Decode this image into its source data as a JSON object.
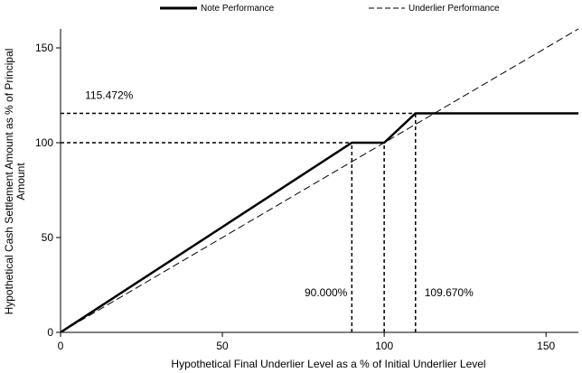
{
  "chart_data": {
    "type": "line",
    "title": "",
    "xlabel": "Hypothetical Final Underlier Level as a % of Initial Underlier Level",
    "ylabel_lines": [
      "Hypothetical Cash Settlement Amount as % of Principal",
      "Amount"
    ],
    "xlim": [
      0,
      160
    ],
    "ylim": [
      0,
      160
    ],
    "xticks": [
      0,
      50,
      100,
      150
    ],
    "yticks": [
      0,
      50,
      100,
      150
    ],
    "grid": false,
    "legend_position": "top",
    "series": [
      {
        "name": "Note Performance",
        "style": "solid",
        "color": "#000000",
        "x": [
          0,
          90,
          100,
          109.67,
          160
        ],
        "y": [
          0,
          100,
          100,
          115.472,
          115.472
        ]
      },
      {
        "name": "Underlier Performance",
        "style": "dashed",
        "color": "#000000",
        "x": [
          0,
          160
        ],
        "y": [
          0,
          160
        ]
      }
    ],
    "reference_lines": [
      {
        "orientation": "horizontal",
        "value": 115.472,
        "from": 0,
        "to": 109.67
      },
      {
        "orientation": "horizontal",
        "value": 100,
        "from": 0,
        "to": 100
      },
      {
        "orientation": "vertical",
        "value": 90,
        "from": 0,
        "to": 100
      },
      {
        "orientation": "vertical",
        "value": 100,
        "from": 0,
        "to": 100
      },
      {
        "orientation": "vertical",
        "value": 109.67,
        "from": 0,
        "to": 115.472
      }
    ],
    "annotations": [
      {
        "text": "115.472%",
        "x": 15,
        "y": 123
      },
      {
        "text": "90.000%",
        "x": 82,
        "y": 19
      },
      {
        "text": "109.670%",
        "x": 120,
        "y": 19
      }
    ]
  }
}
